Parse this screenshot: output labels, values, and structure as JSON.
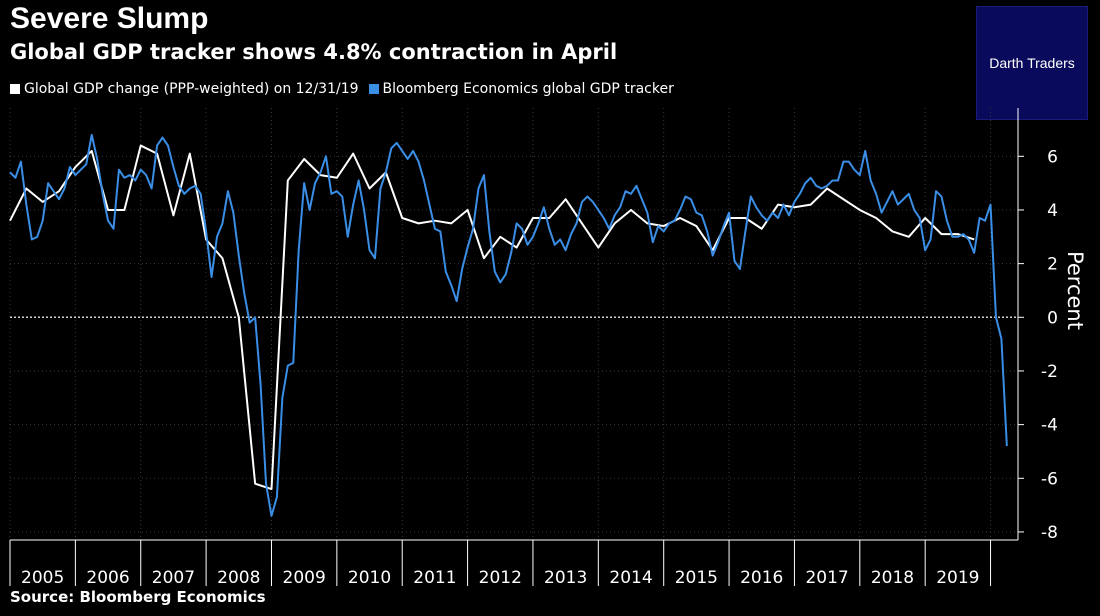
{
  "header": {
    "title": "Severe Slump",
    "subtitle": "Global GDP tracker shows 4.8% contraction in April"
  },
  "badge": {
    "text": "Darth Traders",
    "bg_color": "#0a0a5c"
  },
  "source": "Source: Bloomberg Economics",
  "chart_data": {
    "type": "line",
    "title": "Severe Slump",
    "subtitle": "Global GDP tracker shows 4.8% contraction in April",
    "ylabel": "Percent",
    "xlabel": "",
    "ylim": [
      -8.3,
      7.8
    ],
    "yticks": [
      -8,
      -6,
      -4,
      -2,
      0,
      2,
      4,
      6
    ],
    "ytick_labels": [
      "-8",
      "-6",
      "-4",
      "-2",
      "0",
      "2",
      "4",
      "6"
    ],
    "xlim": [
      2005.0,
      2020.42
    ],
    "year_labels": [
      "2005",
      "2006",
      "2007",
      "2008",
      "2009",
      "2010",
      "2011",
      "2012",
      "2013",
      "2014",
      "2015",
      "2016",
      "2017",
      "2018",
      "2019"
    ],
    "legend_position": "top-left",
    "grid": true,
    "zero_line": "dotted",
    "series": [
      {
        "name": "Global GDP change (PPP-weighted) on 12/31/19",
        "color": "#ffffff",
        "frequency": "quarterly",
        "x": [
          2005.0,
          2005.25,
          2005.5,
          2005.75,
          2006.0,
          2006.25,
          2006.5,
          2006.75,
          2007.0,
          2007.25,
          2007.5,
          2007.75,
          2008.0,
          2008.25,
          2008.5,
          2008.75,
          2009.0,
          2009.25,
          2009.5,
          2009.75,
          2010.0,
          2010.25,
          2010.5,
          2010.75,
          2011.0,
          2011.25,
          2011.5,
          2011.75,
          2012.0,
          2012.25,
          2012.5,
          2012.75,
          2013.0,
          2013.25,
          2013.5,
          2013.75,
          2014.0,
          2014.25,
          2014.5,
          2014.75,
          2015.0,
          2015.25,
          2015.5,
          2015.75,
          2016.0,
          2016.25,
          2016.5,
          2016.75,
          2017.0,
          2017.25,
          2017.5,
          2017.75,
          2018.0,
          2018.25,
          2018.5,
          2018.75,
          2019.0,
          2019.25,
          2019.5,
          2019.75
        ],
        "values": [
          3.6,
          4.8,
          4.3,
          4.7,
          5.6,
          6.2,
          4.0,
          4.0,
          6.4,
          6.1,
          3.8,
          6.1,
          2.9,
          2.2,
          0.0,
          -6.2,
          -6.4,
          5.1,
          5.9,
          5.3,
          5.2,
          6.1,
          4.8,
          5.4,
          3.7,
          3.5,
          3.6,
          3.5,
          4.0,
          2.2,
          3.0,
          2.6,
          3.7,
          3.7,
          4.4,
          3.5,
          2.6,
          3.5,
          4.0,
          3.5,
          3.4,
          3.7,
          3.4,
          2.5,
          3.7,
          3.7,
          3.3,
          4.2,
          4.1,
          4.2,
          4.8,
          4.4,
          4.0,
          3.7,
          3.2,
          3.0,
          3.7,
          3.1,
          3.1,
          2.9
        ]
      },
      {
        "name": "Bloomberg Economics global GDP tracker",
        "color": "#3a8ee6",
        "frequency": "monthly",
        "x_start": 2005.0,
        "x_step": 0.08333,
        "values": [
          5.4,
          5.2,
          5.8,
          4.2,
          2.9,
          3.0,
          3.6,
          5.0,
          4.7,
          4.4,
          4.8,
          5.6,
          5.3,
          5.5,
          5.7,
          6.8,
          5.9,
          4.6,
          3.6,
          3.3,
          5.5,
          5.2,
          5.3,
          5.1,
          5.5,
          5.3,
          4.8,
          6.4,
          6.7,
          6.4,
          5.6,
          4.9,
          4.6,
          4.8,
          4.9,
          4.6,
          3.2,
          1.5,
          3.0,
          3.5,
          4.7,
          3.9,
          2.3,
          0.9,
          -0.2,
          0.0,
          -2.5,
          -6.2,
          -7.4,
          -6.7,
          -3.0,
          -1.8,
          -1.7,
          2.5,
          5.0,
          4.0,
          5.0,
          5.4,
          6.0,
          4.6,
          4.7,
          4.5,
          3.0,
          4.2,
          5.1,
          4.0,
          2.5,
          2.2,
          4.8,
          5.4,
          6.3,
          6.5,
          6.2,
          5.9,
          6.2,
          5.8,
          5.1,
          4.2,
          3.3,
          3.2,
          1.7,
          1.2,
          0.6,
          1.8,
          2.6,
          3.3,
          4.8,
          5.3,
          3.2,
          1.7,
          1.3,
          1.6,
          2.4,
          3.5,
          3.3,
          2.7,
          3.0,
          3.5,
          4.1,
          3.3,
          2.7,
          2.9,
          2.5,
          3.1,
          3.5,
          4.3,
          4.5,
          4.3,
          4.0,
          3.7,
          3.3,
          3.8,
          4.1,
          4.7,
          4.6,
          4.9,
          4.4,
          3.9,
          2.8,
          3.4,
          3.2,
          3.5,
          3.6,
          4.0,
          4.5,
          4.4,
          3.9,
          3.8,
          3.2,
          2.3,
          2.8,
          3.4,
          3.9,
          2.1,
          1.8,
          3.2,
          4.5,
          4.1,
          3.8,
          3.6,
          3.9,
          3.7,
          4.2,
          3.8,
          4.3,
          4.6,
          5.0,
          5.2,
          4.9,
          4.8,
          4.9,
          5.1,
          5.1,
          5.8,
          5.8,
          5.5,
          5.3,
          6.2,
          5.1,
          4.6,
          3.9,
          4.3,
          4.7,
          4.2,
          4.4,
          4.6,
          4.0,
          3.7,
          2.5,
          2.9,
          4.7,
          4.5,
          3.6,
          3.0,
          3.0,
          3.1,
          2.9,
          2.4,
          3.7,
          3.6,
          4.2,
          0.0,
          -0.8,
          -4.8
        ]
      }
    ]
  }
}
